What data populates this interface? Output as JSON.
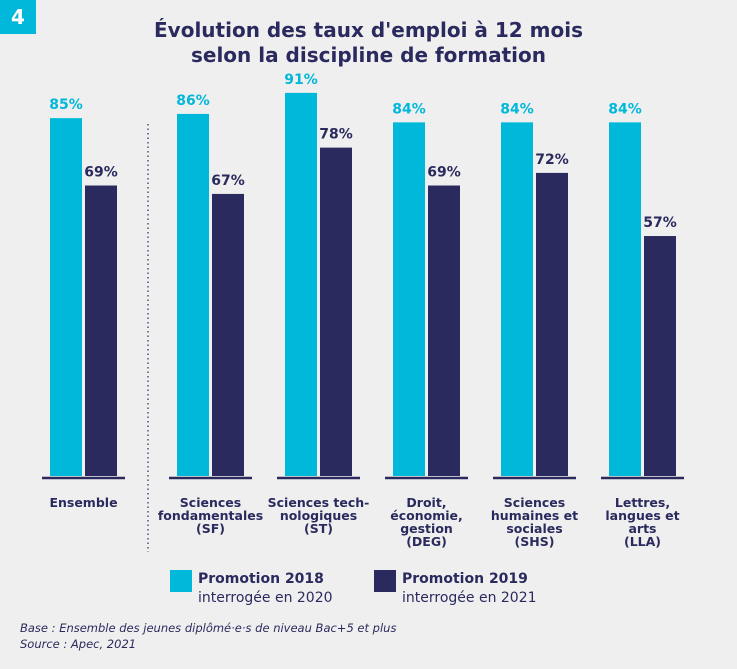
{
  "figure_number": "4",
  "chart_data": {
    "type": "bar",
    "title_lines": [
      "Évolution des taux d'emploi à 12 mois",
      "selon la discipline de formation"
    ],
    "categories": [
      [
        "Ensemble"
      ],
      [
        "Sciences",
        "fondamentales",
        "(SF)"
      ],
      [
        "Sciences tech-",
        "nologiques",
        "(ST)"
      ],
      [
        "Droit,",
        "économie,",
        "gestion",
        "(DEG)"
      ],
      [
        "Sciences",
        "humaines et",
        "sociales",
        "(SHS)"
      ],
      [
        "Lettres,",
        "langues et",
        "arts",
        "(LLA)"
      ]
    ],
    "series": [
      {
        "name": "Promotion 2018",
        "subtitle": "interrogée en 2020",
        "color": "#00b8d9",
        "values": [
          85,
          86,
          91,
          84,
          84,
          84
        ],
        "labels": [
          "85%",
          "86%",
          "91%",
          "84%",
          "84%",
          "84%"
        ]
      },
      {
        "name": "Promotion 2019",
        "subtitle": "interrogée en 2021",
        "color": "#2a2a5e",
        "values": [
          69,
          67,
          78,
          69,
          72,
          57
        ],
        "labels": [
          "69%",
          "67%",
          "78%",
          "69%",
          "72%",
          "57%"
        ]
      }
    ],
    "ylim": [
      0,
      100
    ],
    "grid": false,
    "legend": "bottom"
  },
  "footnotes": {
    "base": "Base : Ensemble des jeunes diplômé·e·s de niveau Bac+5 et plus",
    "source": "Source : Apec, 2021"
  }
}
